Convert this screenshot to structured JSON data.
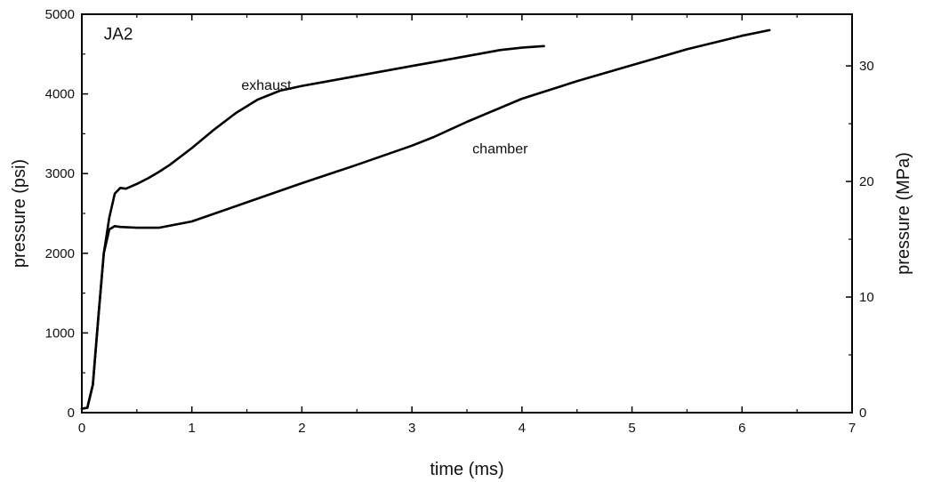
{
  "chart_data": {
    "type": "line",
    "title": "",
    "xlabel": "time (ms)",
    "ylabel": "pressure (psi)",
    "y2label": "pressure (MPa)",
    "xlim": [
      0,
      7
    ],
    "ylim": [
      0,
      5000
    ],
    "y2lim": [
      0,
      34.47
    ],
    "xticks": [
      0,
      1,
      2,
      3,
      4,
      5,
      6,
      7
    ],
    "yticks": [
      0,
      1000,
      2000,
      3000,
      4000,
      5000
    ],
    "y2ticks": [
      0,
      10,
      20,
      30
    ],
    "grid": false,
    "legend": "none",
    "annotations": [
      {
        "text": "JA2",
        "x": 0.2,
        "y": 4750
      },
      {
        "text": "exhaust",
        "x": 1.45,
        "y": 4120
      },
      {
        "text": "chamber",
        "x": 3.55,
        "y": 3320
      }
    ],
    "series": [
      {
        "name": "exhaust",
        "x": [
          0.0,
          0.05,
          0.1,
          0.15,
          0.2,
          0.25,
          0.3,
          0.35,
          0.4,
          0.5,
          0.6,
          0.7,
          0.8,
          1.0,
          1.2,
          1.4,
          1.6,
          1.8,
          2.0,
          2.2,
          2.4,
          2.6,
          2.8,
          3.0,
          3.2,
          3.4,
          3.6,
          3.8,
          4.0,
          4.2
        ],
        "y": [
          50,
          60,
          350,
          1200,
          2000,
          2450,
          2750,
          2820,
          2810,
          2870,
          2940,
          3020,
          3110,
          3320,
          3550,
          3760,
          3930,
          4040,
          4100,
          4150,
          4200,
          4250,
          4300,
          4350,
          4400,
          4450,
          4500,
          4550,
          4580,
          4600
        ]
      },
      {
        "name": "chamber",
        "x": [
          0.0,
          0.05,
          0.1,
          0.15,
          0.2,
          0.25,
          0.3,
          0.35,
          0.5,
          0.7,
          1.0,
          1.5,
          2.0,
          2.5,
          3.0,
          3.2,
          3.5,
          4.0,
          4.5,
          5.0,
          5.5,
          6.0,
          6.25
        ],
        "y": [
          50,
          60,
          350,
          1200,
          2000,
          2300,
          2340,
          2330,
          2320,
          2320,
          2400,
          2640,
          2880,
          3110,
          3350,
          3460,
          3650,
          3940,
          4160,
          4360,
          4560,
          4730,
          4800
        ]
      }
    ]
  }
}
